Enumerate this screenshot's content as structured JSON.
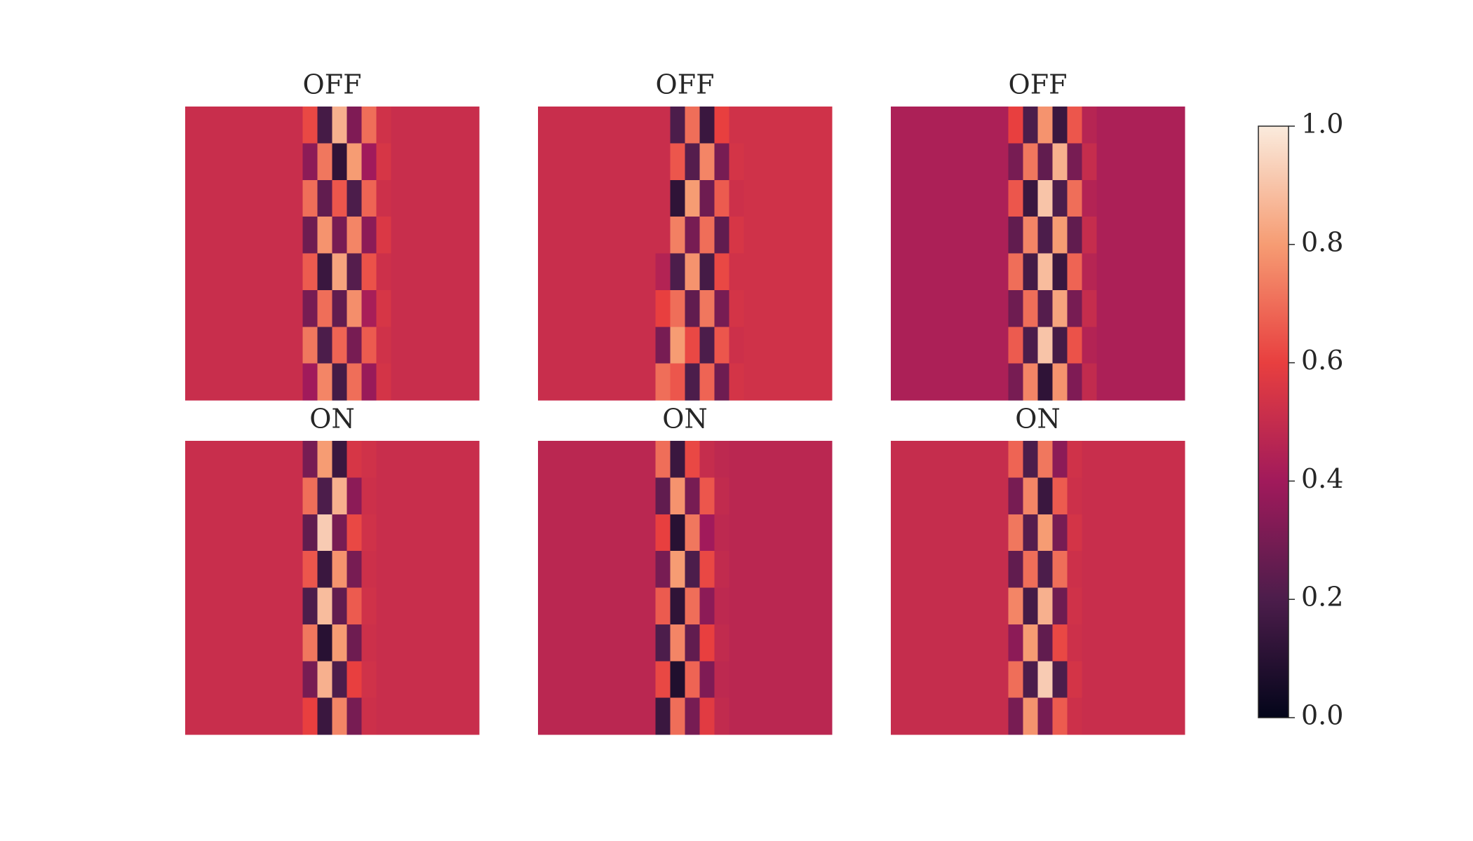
{
  "chart_data": {
    "type": "heatmap",
    "panels": [
      {
        "title": "OFF",
        "values": [
          [
            0.51,
            0.51,
            0.51,
            0.51,
            0.51,
            0.51,
            0.51,
            0.51,
            0.62,
            0.18,
            0.85,
            0.32,
            0.7,
            0.53,
            0.51,
            0.51,
            0.51,
            0.51,
            0.51,
            0.51
          ],
          [
            0.51,
            0.51,
            0.51,
            0.51,
            0.51,
            0.51,
            0.51,
            0.51,
            0.35,
            0.72,
            0.12,
            0.8,
            0.4,
            0.55,
            0.51,
            0.51,
            0.51,
            0.51,
            0.51,
            0.51
          ],
          [
            0.51,
            0.51,
            0.51,
            0.51,
            0.51,
            0.51,
            0.51,
            0.51,
            0.7,
            0.25,
            0.65,
            0.2,
            0.68,
            0.52,
            0.51,
            0.51,
            0.51,
            0.51,
            0.51,
            0.51
          ],
          [
            0.51,
            0.51,
            0.51,
            0.51,
            0.51,
            0.51,
            0.51,
            0.51,
            0.28,
            0.78,
            0.3,
            0.75,
            0.35,
            0.56,
            0.51,
            0.51,
            0.51,
            0.51,
            0.51,
            0.51
          ],
          [
            0.51,
            0.51,
            0.51,
            0.51,
            0.51,
            0.51,
            0.51,
            0.51,
            0.66,
            0.15,
            0.82,
            0.22,
            0.64,
            0.52,
            0.51,
            0.51,
            0.51,
            0.51,
            0.51,
            0.51
          ],
          [
            0.51,
            0.51,
            0.51,
            0.51,
            0.51,
            0.51,
            0.51,
            0.51,
            0.3,
            0.7,
            0.25,
            0.77,
            0.42,
            0.55,
            0.51,
            0.51,
            0.51,
            0.51,
            0.51,
            0.51
          ],
          [
            0.51,
            0.51,
            0.51,
            0.51,
            0.51,
            0.51,
            0.51,
            0.51,
            0.72,
            0.2,
            0.68,
            0.3,
            0.66,
            0.53,
            0.51,
            0.51,
            0.51,
            0.51,
            0.51,
            0.51
          ],
          [
            0.51,
            0.51,
            0.51,
            0.51,
            0.51,
            0.51,
            0.51,
            0.51,
            0.4,
            0.75,
            0.18,
            0.7,
            0.38,
            0.54,
            0.51,
            0.51,
            0.51,
            0.51,
            0.51,
            0.51
          ]
        ]
      },
      {
        "title": "OFF",
        "values": [
          [
            0.51,
            0.51,
            0.51,
            0.51,
            0.51,
            0.51,
            0.51,
            0.51,
            0.51,
            0.2,
            0.7,
            0.15,
            0.6,
            0.53,
            0.53,
            0.53,
            0.53,
            0.53,
            0.53,
            0.53
          ],
          [
            0.51,
            0.51,
            0.51,
            0.51,
            0.51,
            0.51,
            0.51,
            0.51,
            0.51,
            0.65,
            0.22,
            0.75,
            0.3,
            0.54,
            0.53,
            0.53,
            0.53,
            0.53,
            0.53,
            0.53
          ],
          [
            0.51,
            0.51,
            0.51,
            0.51,
            0.51,
            0.51,
            0.51,
            0.51,
            0.51,
            0.12,
            0.8,
            0.28,
            0.66,
            0.52,
            0.53,
            0.53,
            0.53,
            0.53,
            0.53,
            0.53
          ],
          [
            0.51,
            0.51,
            0.51,
            0.51,
            0.51,
            0.51,
            0.51,
            0.51,
            0.51,
            0.74,
            0.3,
            0.7,
            0.25,
            0.55,
            0.53,
            0.53,
            0.53,
            0.53,
            0.53,
            0.53
          ],
          [
            0.51,
            0.51,
            0.51,
            0.51,
            0.51,
            0.51,
            0.51,
            0.51,
            0.45,
            0.2,
            0.78,
            0.18,
            0.62,
            0.53,
            0.53,
            0.53,
            0.53,
            0.53,
            0.53,
            0.53
          ],
          [
            0.51,
            0.51,
            0.51,
            0.51,
            0.51,
            0.51,
            0.51,
            0.51,
            0.6,
            0.7,
            0.25,
            0.72,
            0.3,
            0.54,
            0.53,
            0.53,
            0.53,
            0.53,
            0.53,
            0.53
          ],
          [
            0.51,
            0.51,
            0.51,
            0.51,
            0.51,
            0.51,
            0.51,
            0.51,
            0.3,
            0.8,
            0.62,
            0.2,
            0.65,
            0.52,
            0.53,
            0.53,
            0.53,
            0.53,
            0.53,
            0.53
          ],
          [
            0.51,
            0.51,
            0.51,
            0.51,
            0.51,
            0.51,
            0.51,
            0.51,
            0.7,
            0.65,
            0.2,
            0.68,
            0.28,
            0.54,
            0.53,
            0.53,
            0.53,
            0.53,
            0.53,
            0.53
          ]
        ]
      },
      {
        "title": "OFF",
        "values": [
          [
            0.43,
            0.43,
            0.43,
            0.43,
            0.43,
            0.43,
            0.43,
            0.43,
            0.6,
            0.2,
            0.78,
            0.15,
            0.65,
            0.46,
            0.43,
            0.43,
            0.43,
            0.43,
            0.43,
            0.43
          ],
          [
            0.43,
            0.43,
            0.43,
            0.43,
            0.43,
            0.43,
            0.43,
            0.43,
            0.3,
            0.72,
            0.25,
            0.85,
            0.3,
            0.5,
            0.43,
            0.43,
            0.43,
            0.43,
            0.43,
            0.43
          ],
          [
            0.43,
            0.43,
            0.43,
            0.43,
            0.43,
            0.43,
            0.43,
            0.43,
            0.65,
            0.15,
            0.9,
            0.2,
            0.7,
            0.45,
            0.43,
            0.43,
            0.43,
            0.43,
            0.43,
            0.43
          ],
          [
            0.43,
            0.43,
            0.43,
            0.43,
            0.43,
            0.43,
            0.43,
            0.43,
            0.25,
            0.75,
            0.2,
            0.8,
            0.25,
            0.5,
            0.43,
            0.43,
            0.43,
            0.43,
            0.43,
            0.43
          ],
          [
            0.43,
            0.43,
            0.43,
            0.43,
            0.43,
            0.43,
            0.43,
            0.43,
            0.7,
            0.18,
            0.88,
            0.15,
            0.68,
            0.46,
            0.43,
            0.43,
            0.43,
            0.43,
            0.43,
            0.43
          ],
          [
            0.43,
            0.43,
            0.43,
            0.43,
            0.43,
            0.43,
            0.43,
            0.43,
            0.28,
            0.7,
            0.22,
            0.82,
            0.3,
            0.5,
            0.43,
            0.43,
            0.43,
            0.43,
            0.43,
            0.43
          ],
          [
            0.43,
            0.43,
            0.43,
            0.43,
            0.43,
            0.43,
            0.43,
            0.43,
            0.66,
            0.2,
            0.9,
            0.18,
            0.64,
            0.45,
            0.43,
            0.43,
            0.43,
            0.43,
            0.43,
            0.43
          ],
          [
            0.43,
            0.43,
            0.43,
            0.43,
            0.43,
            0.43,
            0.43,
            0.43,
            0.3,
            0.75,
            0.12,
            0.78,
            0.32,
            0.49,
            0.43,
            0.43,
            0.43,
            0.43,
            0.43,
            0.43
          ]
        ]
      },
      {
        "title": "ON",
        "values": [
          [
            0.51,
            0.51,
            0.51,
            0.51,
            0.51,
            0.51,
            0.51,
            0.51,
            0.3,
            0.8,
            0.15,
            0.55,
            0.53,
            0.51,
            0.51,
            0.51,
            0.51,
            0.51,
            0.51,
            0.51
          ],
          [
            0.51,
            0.51,
            0.51,
            0.51,
            0.51,
            0.51,
            0.51,
            0.51,
            0.7,
            0.2,
            0.85,
            0.35,
            0.52,
            0.51,
            0.51,
            0.51,
            0.51,
            0.51,
            0.51,
            0.51
          ],
          [
            0.51,
            0.51,
            0.51,
            0.51,
            0.51,
            0.51,
            0.51,
            0.51,
            0.25,
            0.92,
            0.3,
            0.62,
            0.53,
            0.51,
            0.51,
            0.51,
            0.51,
            0.51,
            0.51,
            0.51
          ],
          [
            0.51,
            0.51,
            0.51,
            0.51,
            0.51,
            0.51,
            0.51,
            0.51,
            0.65,
            0.15,
            0.78,
            0.3,
            0.52,
            0.51,
            0.51,
            0.51,
            0.51,
            0.51,
            0.51,
            0.51
          ],
          [
            0.51,
            0.51,
            0.51,
            0.51,
            0.51,
            0.51,
            0.51,
            0.51,
            0.2,
            0.88,
            0.25,
            0.66,
            0.53,
            0.51,
            0.51,
            0.51,
            0.51,
            0.51,
            0.51,
            0.51
          ],
          [
            0.51,
            0.51,
            0.51,
            0.51,
            0.51,
            0.51,
            0.51,
            0.51,
            0.72,
            0.1,
            0.8,
            0.28,
            0.52,
            0.51,
            0.51,
            0.51,
            0.51,
            0.51,
            0.51,
            0.51
          ],
          [
            0.51,
            0.51,
            0.51,
            0.51,
            0.51,
            0.51,
            0.51,
            0.51,
            0.3,
            0.85,
            0.2,
            0.6,
            0.53,
            0.51,
            0.51,
            0.51,
            0.51,
            0.51,
            0.51,
            0.51
          ],
          [
            0.51,
            0.51,
            0.51,
            0.51,
            0.51,
            0.51,
            0.51,
            0.51,
            0.6,
            0.15,
            0.75,
            0.3,
            0.52,
            0.51,
            0.51,
            0.51,
            0.51,
            0.51,
            0.51,
            0.51
          ]
        ]
      },
      {
        "title": "ON",
        "values": [
          [
            0.47,
            0.47,
            0.47,
            0.47,
            0.47,
            0.47,
            0.47,
            0.47,
            0.7,
            0.15,
            0.62,
            0.5,
            0.48,
            0.47,
            0.47,
            0.47,
            0.47,
            0.47,
            0.47,
            0.47
          ],
          [
            0.47,
            0.47,
            0.47,
            0.47,
            0.47,
            0.47,
            0.47,
            0.47,
            0.25,
            0.78,
            0.3,
            0.65,
            0.49,
            0.47,
            0.47,
            0.47,
            0.47,
            0.47,
            0.47,
            0.47
          ],
          [
            0.47,
            0.47,
            0.47,
            0.47,
            0.47,
            0.47,
            0.47,
            0.47,
            0.6,
            0.1,
            0.72,
            0.4,
            0.48,
            0.47,
            0.47,
            0.47,
            0.47,
            0.47,
            0.47,
            0.47
          ],
          [
            0.47,
            0.47,
            0.47,
            0.47,
            0.47,
            0.47,
            0.47,
            0.47,
            0.3,
            0.8,
            0.2,
            0.62,
            0.49,
            0.47,
            0.47,
            0.47,
            0.47,
            0.47,
            0.47,
            0.47
          ],
          [
            0.47,
            0.47,
            0.47,
            0.47,
            0.47,
            0.47,
            0.47,
            0.47,
            0.66,
            0.12,
            0.7,
            0.35,
            0.48,
            0.47,
            0.47,
            0.47,
            0.47,
            0.47,
            0.47,
            0.47
          ],
          [
            0.47,
            0.47,
            0.47,
            0.47,
            0.47,
            0.47,
            0.47,
            0.47,
            0.2,
            0.75,
            0.25,
            0.6,
            0.49,
            0.47,
            0.47,
            0.47,
            0.47,
            0.47,
            0.47,
            0.47
          ],
          [
            0.47,
            0.47,
            0.47,
            0.47,
            0.47,
            0.47,
            0.47,
            0.47,
            0.62,
            0.08,
            0.68,
            0.32,
            0.48,
            0.47,
            0.47,
            0.47,
            0.47,
            0.47,
            0.47,
            0.47
          ],
          [
            0.47,
            0.47,
            0.47,
            0.47,
            0.47,
            0.47,
            0.47,
            0.47,
            0.15,
            0.7,
            0.3,
            0.58,
            0.49,
            0.47,
            0.47,
            0.47,
            0.47,
            0.47,
            0.47,
            0.47
          ]
        ]
      },
      {
        "title": "ON",
        "values": [
          [
            0.5,
            0.5,
            0.5,
            0.5,
            0.5,
            0.5,
            0.5,
            0.5,
            0.68,
            0.2,
            0.72,
            0.35,
            0.53,
            0.51,
            0.51,
            0.51,
            0.51,
            0.51,
            0.51,
            0.51
          ],
          [
            0.5,
            0.5,
            0.5,
            0.5,
            0.5,
            0.5,
            0.5,
            0.5,
            0.3,
            0.75,
            0.15,
            0.66,
            0.52,
            0.51,
            0.51,
            0.51,
            0.51,
            0.51,
            0.51,
            0.51
          ],
          [
            0.5,
            0.5,
            0.5,
            0.5,
            0.5,
            0.5,
            0.5,
            0.5,
            0.72,
            0.22,
            0.8,
            0.3,
            0.54,
            0.51,
            0.51,
            0.51,
            0.51,
            0.51,
            0.51,
            0.51
          ],
          [
            0.5,
            0.5,
            0.5,
            0.5,
            0.5,
            0.5,
            0.5,
            0.5,
            0.25,
            0.7,
            0.2,
            0.7,
            0.52,
            0.51,
            0.51,
            0.51,
            0.51,
            0.51,
            0.51,
            0.51
          ],
          [
            0.5,
            0.5,
            0.5,
            0.5,
            0.5,
            0.5,
            0.5,
            0.5,
            0.75,
            0.18,
            0.85,
            0.28,
            0.53,
            0.51,
            0.51,
            0.51,
            0.51,
            0.51,
            0.51,
            0.51
          ],
          [
            0.5,
            0.5,
            0.5,
            0.5,
            0.5,
            0.5,
            0.5,
            0.5,
            0.35,
            0.8,
            0.25,
            0.62,
            0.52,
            0.51,
            0.51,
            0.51,
            0.51,
            0.51,
            0.51,
            0.51
          ],
          [
            0.5,
            0.5,
            0.5,
            0.5,
            0.5,
            0.5,
            0.5,
            0.5,
            0.7,
            0.2,
            0.92,
            0.2,
            0.54,
            0.51,
            0.51,
            0.51,
            0.51,
            0.51,
            0.51,
            0.51
          ],
          [
            0.5,
            0.5,
            0.5,
            0.5,
            0.5,
            0.5,
            0.5,
            0.5,
            0.3,
            0.78,
            0.3,
            0.66,
            0.52,
            0.51,
            0.51,
            0.51,
            0.51,
            0.51,
            0.51,
            0.51
          ]
        ]
      }
    ],
    "zlim": [
      0,
      1
    ],
    "colorbar_ticks": [
      {
        "value": 0,
        "label": "0.0"
      },
      0.2,
      0.4,
      0.6,
      0.8,
      {
        "value": 1,
        "label": "1.0"
      }
    ],
    "colormap": [
      "#03051a",
      "#4c1d4b",
      "#a11a5b",
      "#e83f3f",
      "#f69c73",
      "#faebdd"
    ]
  }
}
